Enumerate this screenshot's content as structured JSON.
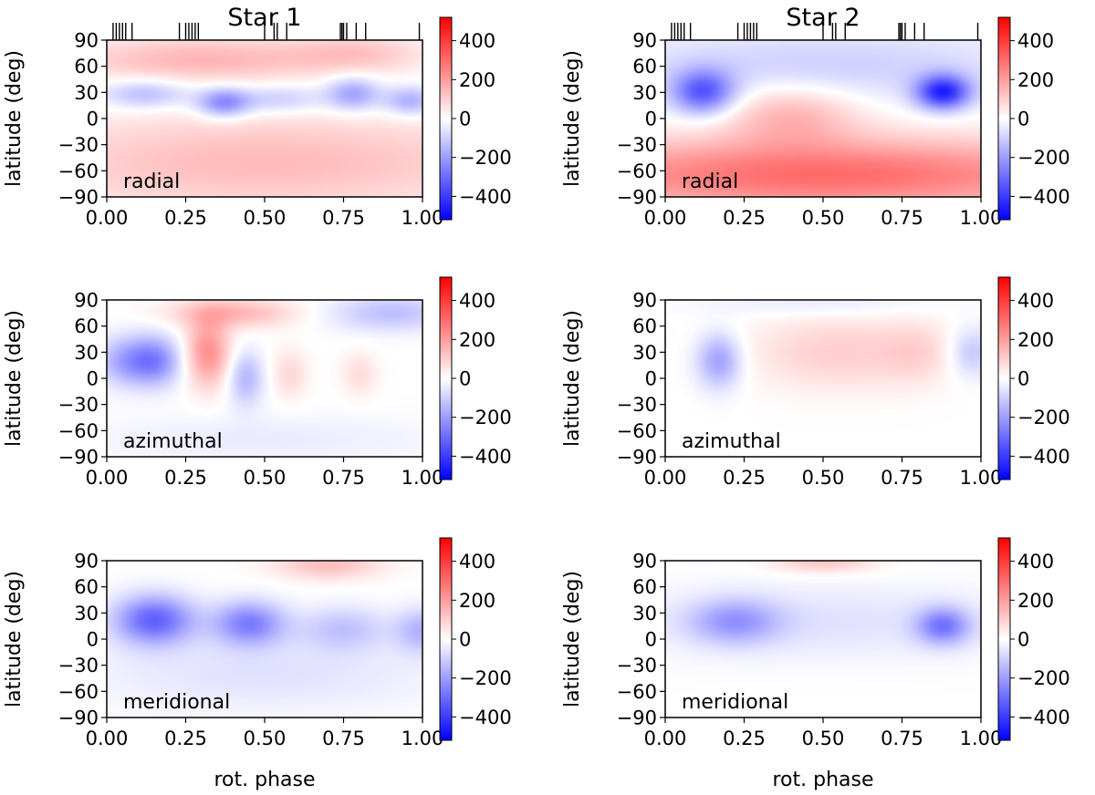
{
  "chart_data": {
    "type": "heatmap",
    "x_ticks": [
      "0.00",
      "0.25",
      "0.50",
      "0.75",
      "1.00"
    ],
    "y_ticks": [
      "90",
      "60",
      "30",
      "0",
      "−30",
      "−60",
      "−90"
    ],
    "xlim": [
      0,
      1
    ],
    "ylim": [
      -90,
      90
    ],
    "ylabel": "latitude (deg)",
    "xlabel": "rot. phase",
    "colorbar": {
      "ticks": [
        "400",
        "200",
        "0",
        "−200",
        "−400"
      ],
      "tick_values": [
        400,
        200,
        0,
        -200,
        -400
      ],
      "range": [
        -520,
        520
      ],
      "colors": [
        "#0000ff",
        "#ffffff",
        "#ff0000"
      ]
    },
    "columns": [
      {
        "title": "Star 1",
        "observation_phases": [
          0.02,
          0.03,
          0.04,
          0.05,
          0.06,
          0.08,
          0.23,
          0.25,
          0.26,
          0.27,
          0.28,
          0.29,
          0.5,
          0.53,
          0.54,
          0.57,
          0.74,
          0.745,
          0.75,
          0.76,
          0.79,
          0.82,
          0.99
        ],
        "panels": [
          {
            "label": "radial",
            "fields": [
              {
                "x": 0.3,
                "y": 68,
                "sx": 0.3,
                "sy": 18,
                "v": 150
              },
              {
                "x": 0.8,
                "y": 75,
                "sx": 0.15,
                "sy": 15,
                "v": 100
              },
              {
                "x": 0.12,
                "y": 28,
                "sx": 0.1,
                "sy": 12,
                "v": -150
              },
              {
                "x": 0.37,
                "y": 18,
                "sx": 0.06,
                "sy": 12,
                "v": -250
              },
              {
                "x": 0.55,
                "y": 22,
                "sx": 0.1,
                "sy": 12,
                "v": -120
              },
              {
                "x": 0.78,
                "y": 28,
                "sx": 0.06,
                "sy": 14,
                "v": -200
              },
              {
                "x": 0.96,
                "y": 20,
                "sx": 0.06,
                "sy": 12,
                "v": -180
              },
              {
                "x": 0.5,
                "y": -50,
                "sx": 0.6,
                "sy": 40,
                "v": 140
              }
            ]
          },
          {
            "label": "azimuthal",
            "fields": [
              {
                "x": 0.15,
                "y": 20,
                "sx": 0.06,
                "sy": 20,
                "v": -250
              },
              {
                "x": 0.05,
                "y": 20,
                "sx": 0.06,
                "sy": 20,
                "v": -150
              },
              {
                "x": 0.32,
                "y": 30,
                "sx": 0.05,
                "sy": 28,
                "v": 230
              },
              {
                "x": 0.4,
                "y": 75,
                "sx": 0.14,
                "sy": 12,
                "v": 150
              },
              {
                "x": 0.44,
                "y": 0,
                "sx": 0.04,
                "sy": 22,
                "v": -150
              },
              {
                "x": 0.58,
                "y": 5,
                "sx": 0.04,
                "sy": 20,
                "v": 80
              },
              {
                "x": 0.8,
                "y": 5,
                "sx": 0.04,
                "sy": 18,
                "v": 70
              },
              {
                "x": 0.9,
                "y": 75,
                "sx": 0.14,
                "sy": 15,
                "v": -130
              },
              {
                "x": 0.5,
                "y": -70,
                "sx": 0.4,
                "sy": 20,
                "v": -40
              }
            ]
          },
          {
            "label": "meridional",
            "fields": [
              {
                "x": 0.15,
                "y": 22,
                "sx": 0.09,
                "sy": 20,
                "v": -320
              },
              {
                "x": 0.45,
                "y": 18,
                "sx": 0.08,
                "sy": 18,
                "v": -260
              },
              {
                "x": 0.75,
                "y": 12,
                "sx": 0.1,
                "sy": 18,
                "v": -120
              },
              {
                "x": 1.0,
                "y": 10,
                "sx": 0.06,
                "sy": 18,
                "v": -150
              },
              {
                "x": 0.7,
                "y": 85,
                "sx": 0.12,
                "sy": 12,
                "v": 130
              },
              {
                "x": 0.5,
                "y": -40,
                "sx": 0.4,
                "sy": 30,
                "v": -60
              }
            ]
          }
        ]
      },
      {
        "title": "Star 2",
        "observation_phases": [
          0.02,
          0.03,
          0.04,
          0.05,
          0.06,
          0.08,
          0.23,
          0.25,
          0.26,
          0.27,
          0.28,
          0.29,
          0.5,
          0.53,
          0.54,
          0.57,
          0.74,
          0.745,
          0.75,
          0.76,
          0.79,
          0.82,
          0.99
        ],
        "panels": [
          {
            "label": "radial",
            "fields": [
              {
                "x": 0.12,
                "y": 30,
                "sx": 0.07,
                "sy": 18,
                "v": -320
              },
              {
                "x": 0.88,
                "y": 30,
                "sx": 0.06,
                "sy": 14,
                "v": -420
              },
              {
                "x": 0.5,
                "y": 60,
                "sx": 0.5,
                "sy": 30,
                "v": -100
              },
              {
                "x": 0.5,
                "y": -65,
                "sx": 0.7,
                "sy": 30,
                "v": 300
              },
              {
                "x": 0.4,
                "y": 5,
                "sx": 0.15,
                "sy": 25,
                "v": 150
              }
            ]
          },
          {
            "label": "azimuthal",
            "fields": [
              {
                "x": 0.17,
                "y": 20,
                "sx": 0.05,
                "sy": 22,
                "v": -200
              },
              {
                "x": 0.55,
                "y": 30,
                "sx": 0.2,
                "sy": 30,
                "v": 100
              },
              {
                "x": 0.8,
                "y": 30,
                "sx": 0.08,
                "sy": 25,
                "v": 60
              },
              {
                "x": 0.97,
                "y": 30,
                "sx": 0.05,
                "sy": 20,
                "v": -120
              },
              {
                "x": 0.5,
                "y": 85,
                "sx": 0.25,
                "sy": 10,
                "v": -50
              }
            ]
          },
          {
            "label": "meridional",
            "fields": [
              {
                "x": 0.22,
                "y": 20,
                "sx": 0.1,
                "sy": 18,
                "v": -180
              },
              {
                "x": 0.88,
                "y": 15,
                "sx": 0.06,
                "sy": 15,
                "v": -250
              },
              {
                "x": 0.5,
                "y": 90,
                "sx": 0.12,
                "sy": 10,
                "v": 120
              },
              {
                "x": 0.5,
                "y": 20,
                "sx": 0.45,
                "sy": 30,
                "v": -60
              }
            ]
          }
        ]
      }
    ]
  }
}
